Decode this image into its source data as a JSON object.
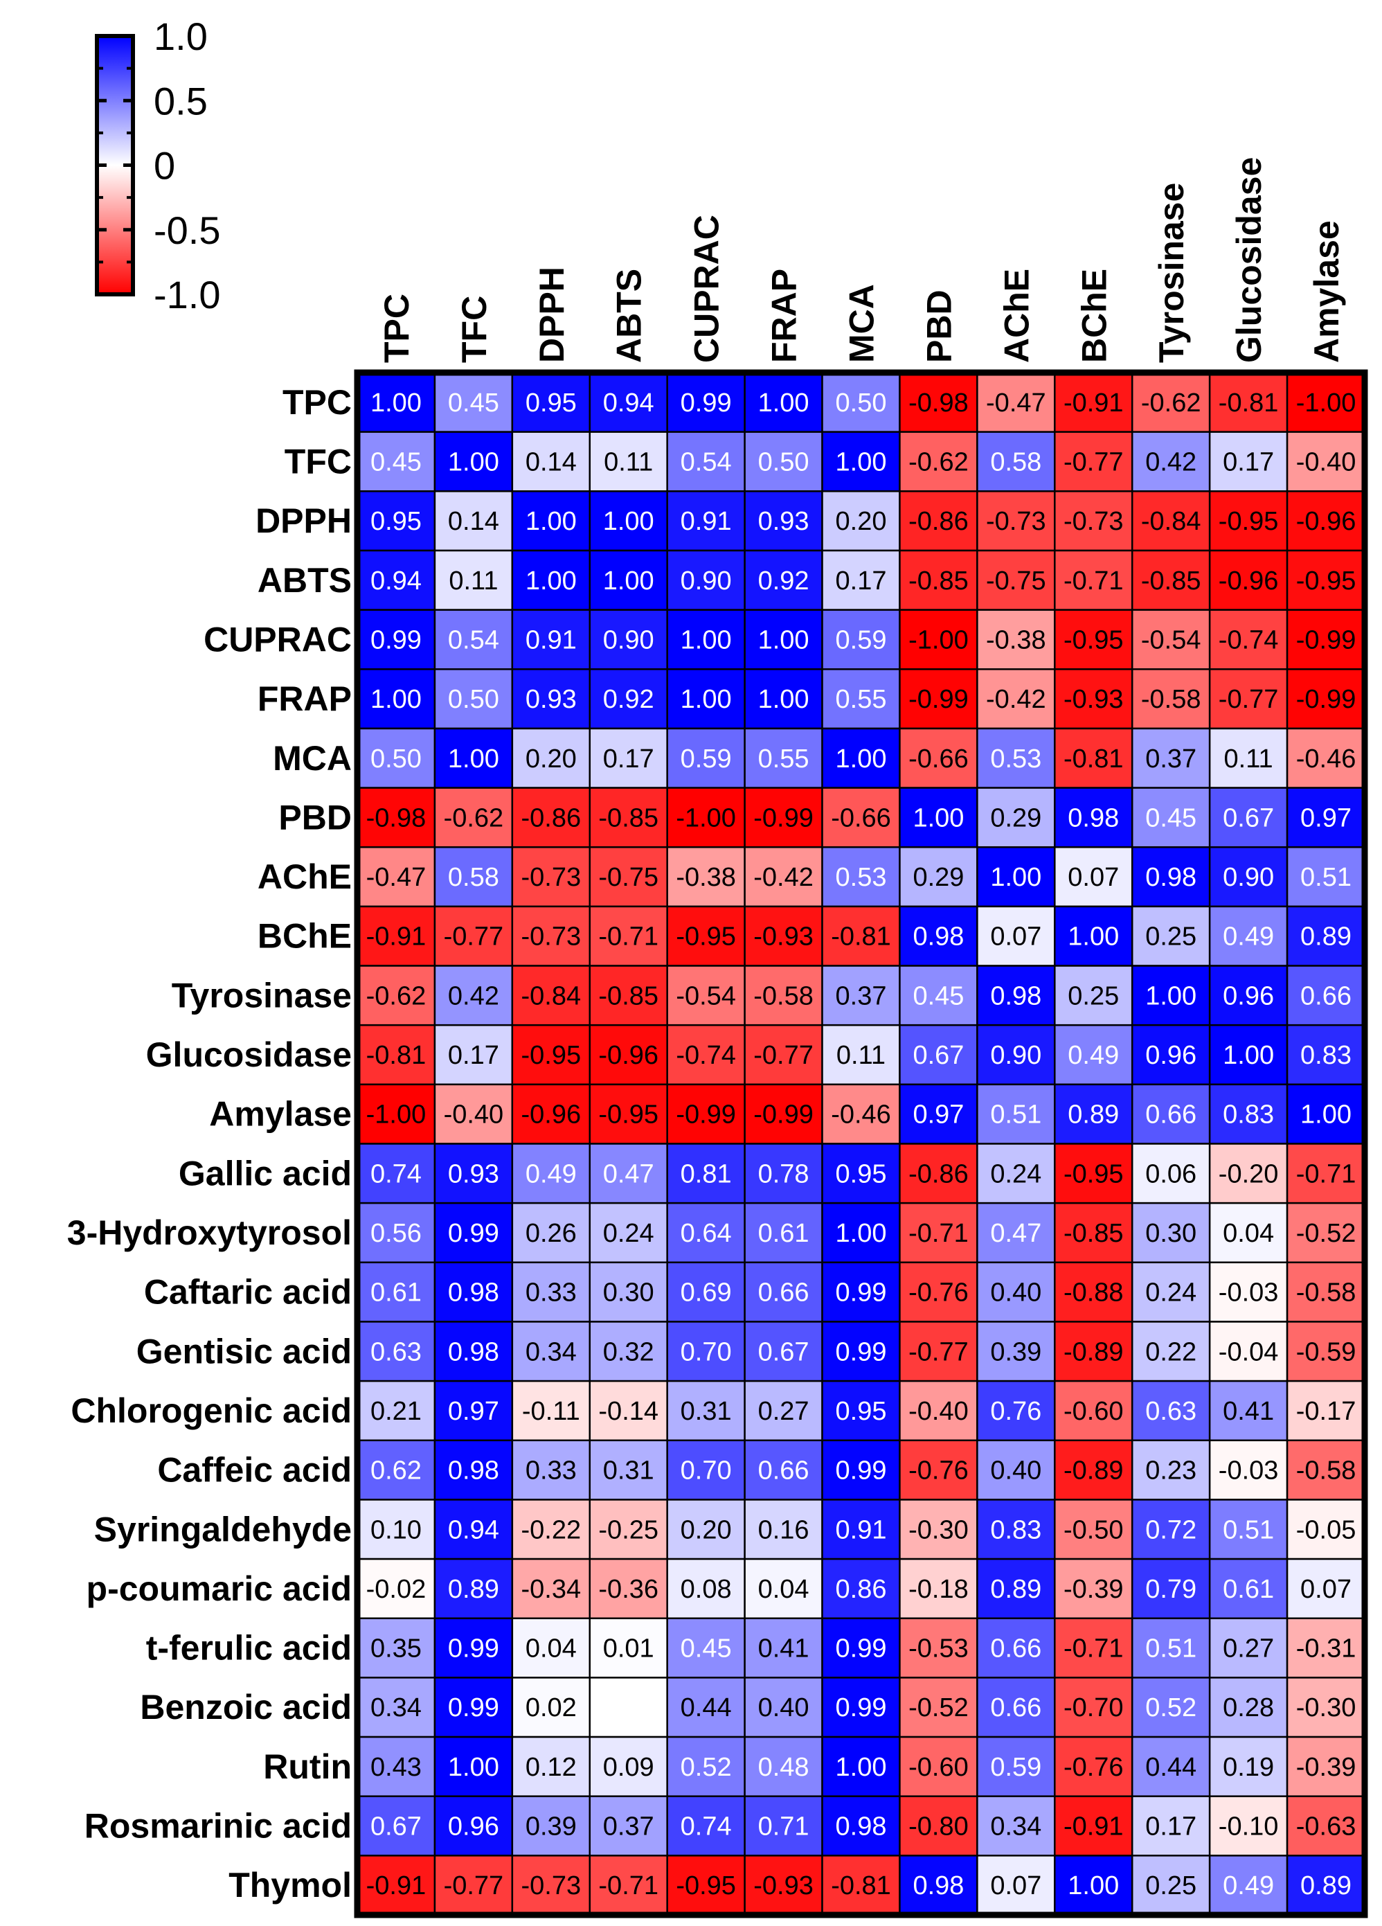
{
  "chart_data": {
    "type": "heatmap",
    "columns": [
      "TPC",
      "TFC",
      "DPPH",
      "ABTS",
      "CUPRAC",
      "FRAP",
      "MCA",
      "PBD",
      "AChE",
      "BChE",
      "Tyrosinase",
      "Glucosidase",
      "Amylase"
    ],
    "rows": [
      "TPC",
      "TFC",
      "DPPH",
      "ABTS",
      "CUPRAC",
      "FRAP",
      "MCA",
      "PBD",
      "AChE",
      "BChE",
      "Tyrosinase",
      "Glucosidase",
      "Amylase",
      "Gallic acid",
      "3-Hydroxytyrosol",
      "Caftaric acid",
      "Gentisic acid",
      "Chlorogenic acid",
      "Caffeic acid",
      "Syringaldehyde",
      "p-coumaric acid",
      "t-ferulic acid",
      "Benzoic acid",
      "Rutin",
      "Rosmarinic acid",
      "Thymol"
    ],
    "values": [
      [
        "1.00",
        "0.45",
        "0.95",
        "0.94",
        "0.99",
        "1.00",
        "0.50",
        "-0.98",
        "-0.47",
        "-0.91",
        "-0.62",
        "-0.81",
        "-1.00"
      ],
      [
        "0.45",
        "1.00",
        "0.14",
        "0.11",
        "0.54",
        "0.50",
        "1.00",
        "-0.62",
        "0.58",
        "-0.77",
        "0.42",
        "0.17",
        "-0.40"
      ],
      [
        "0.95",
        "0.14",
        "1.00",
        "1.00",
        "0.91",
        "0.93",
        "0.20",
        "-0.86",
        "-0.73",
        "-0.73",
        "-0.84",
        "-0.95",
        "-0.96"
      ],
      [
        "0.94",
        "0.11",
        "1.00",
        "1.00",
        "0.90",
        "0.92",
        "0.17",
        "-0.85",
        "-0.75",
        "-0.71",
        "-0.85",
        "-0.96",
        "-0.95"
      ],
      [
        "0.99",
        "0.54",
        "0.91",
        "0.90",
        "1.00",
        "1.00",
        "0.59",
        "-1.00",
        "-0.38",
        "-0.95",
        "-0.54",
        "-0.74",
        "-0.99"
      ],
      [
        "1.00",
        "0.50",
        "0.93",
        "0.92",
        "1.00",
        "1.00",
        "0.55",
        "-0.99",
        "-0.42",
        "-0.93",
        "-0.58",
        "-0.77",
        "-0.99"
      ],
      [
        "0.50",
        "1.00",
        "0.20",
        "0.17",
        "0.59",
        "0.55",
        "1.00",
        "-0.66",
        "0.53",
        "-0.81",
        "0.37",
        "0.11",
        "-0.46"
      ],
      [
        "-0.98",
        "-0.62",
        "-0.86",
        "-0.85",
        "-1.00",
        "-0.99",
        "-0.66",
        "1.00",
        "0.29",
        "0.98",
        "0.45",
        "0.67",
        "0.97"
      ],
      [
        "-0.47",
        "0.58",
        "-0.73",
        "-0.75",
        "-0.38",
        "-0.42",
        "0.53",
        "0.29",
        "1.00",
        "0.07",
        "0.98",
        "0.90",
        "0.51"
      ],
      [
        "-0.91",
        "-0.77",
        "-0.73",
        "-0.71",
        "-0.95",
        "-0.93",
        "-0.81",
        "0.98",
        "0.07",
        "1.00",
        "0.25",
        "0.49",
        "0.89"
      ],
      [
        "-0.62",
        "0.42",
        "-0.84",
        "-0.85",
        "-0.54",
        "-0.58",
        "0.37",
        "0.45",
        "0.98",
        "0.25",
        "1.00",
        "0.96",
        "0.66"
      ],
      [
        "-0.81",
        "0.17",
        "-0.95",
        "-0.96",
        "-0.74",
        "-0.77",
        "0.11",
        "0.67",
        "0.90",
        "0.49",
        "0.96",
        "1.00",
        "0.83"
      ],
      [
        "-1.00",
        "-0.40",
        "-0.96",
        "-0.95",
        "-0.99",
        "-0.99",
        "-0.46",
        "0.97",
        "0.51",
        "0.89",
        "0.66",
        "0.83",
        "1.00"
      ],
      [
        "0.74",
        "0.93",
        "0.49",
        "0.47",
        "0.81",
        "0.78",
        "0.95",
        "-0.86",
        "0.24",
        "-0.95",
        "0.06",
        "-0.20",
        "-0.71"
      ],
      [
        "0.56",
        "0.99",
        "0.26",
        "0.24",
        "0.64",
        "0.61",
        "1.00",
        "-0.71",
        "0.47",
        "-0.85",
        "0.30",
        "0.04",
        "-0.52"
      ],
      [
        "0.61",
        "0.98",
        "0.33",
        "0.30",
        "0.69",
        "0.66",
        "0.99",
        "-0.76",
        "0.40",
        "-0.88",
        "0.24",
        "-0.03",
        "-0.58"
      ],
      [
        "0.63",
        "0.98",
        "0.34",
        "0.32",
        "0.70",
        "0.67",
        "0.99",
        "-0.77",
        "0.39",
        "-0.89",
        "0.22",
        "-0.04",
        "-0.59"
      ],
      [
        "0.21",
        "0.97",
        "-0.11",
        "-0.14",
        "0.31",
        "0.27",
        "0.95",
        "-0.40",
        "0.76",
        "-0.60",
        "0.63",
        "0.41",
        "-0.17"
      ],
      [
        "0.62",
        "0.98",
        "0.33",
        "0.31",
        "0.70",
        "0.66",
        "0.99",
        "-0.76",
        "0.40",
        "-0.89",
        "0.23",
        "-0.03",
        "-0.58"
      ],
      [
        "0.10",
        "0.94",
        "-0.22",
        "-0.25",
        "0.20",
        "0.16",
        "0.91",
        "-0.30",
        "0.83",
        "-0.50",
        "0.72",
        "0.51",
        "-0.05"
      ],
      [
        "-0.02",
        "0.89",
        "-0.34",
        "-0.36",
        "0.08",
        "0.04",
        "0.86",
        "-0.18",
        "0.89",
        "-0.39",
        "0.79",
        "0.61",
        "0.07"
      ],
      [
        "0.35",
        "0.99",
        "0.04",
        "0.01",
        "0.45",
        "0.41",
        "0.99",
        "-0.53",
        "0.66",
        "-0.71",
        "0.51",
        "0.27",
        "-0.31"
      ],
      [
        "0.34",
        "0.99",
        "0.02",
        "",
        "0.44",
        "0.40",
        "0.99",
        "-0.52",
        "0.66",
        "-0.70",
        "0.52",
        "0.28",
        "-0.30"
      ],
      [
        "0.43",
        "1.00",
        "0.12",
        "0.09",
        "0.52",
        "0.48",
        "1.00",
        "-0.60",
        "0.59",
        "-0.76",
        "0.44",
        "0.19",
        "-0.39"
      ],
      [
        "0.67",
        "0.96",
        "0.39",
        "0.37",
        "0.74",
        "0.71",
        "0.98",
        "-0.80",
        "0.34",
        "-0.91",
        "0.17",
        "-0.10",
        "-0.63"
      ],
      [
        "-0.91",
        "-0.77",
        "-0.73",
        "-0.71",
        "-0.95",
        "-0.93",
        "-0.81",
        "0.98",
        "0.07",
        "1.00",
        "0.25",
        "0.49",
        "0.89"
      ]
    ],
    "colorbar": {
      "range": [
        -1.0,
        1.0
      ],
      "tick_labels": [
        "1.0",
        "0.5",
        "0",
        "-0.5",
        "-1.0"
      ],
      "tick_values": [
        1.0,
        0.5,
        0,
        -0.5,
        -1.0
      ],
      "colors": {
        "positive": "#0000ff",
        "zero": "#ffffff",
        "negative": "#ff0000"
      }
    }
  }
}
